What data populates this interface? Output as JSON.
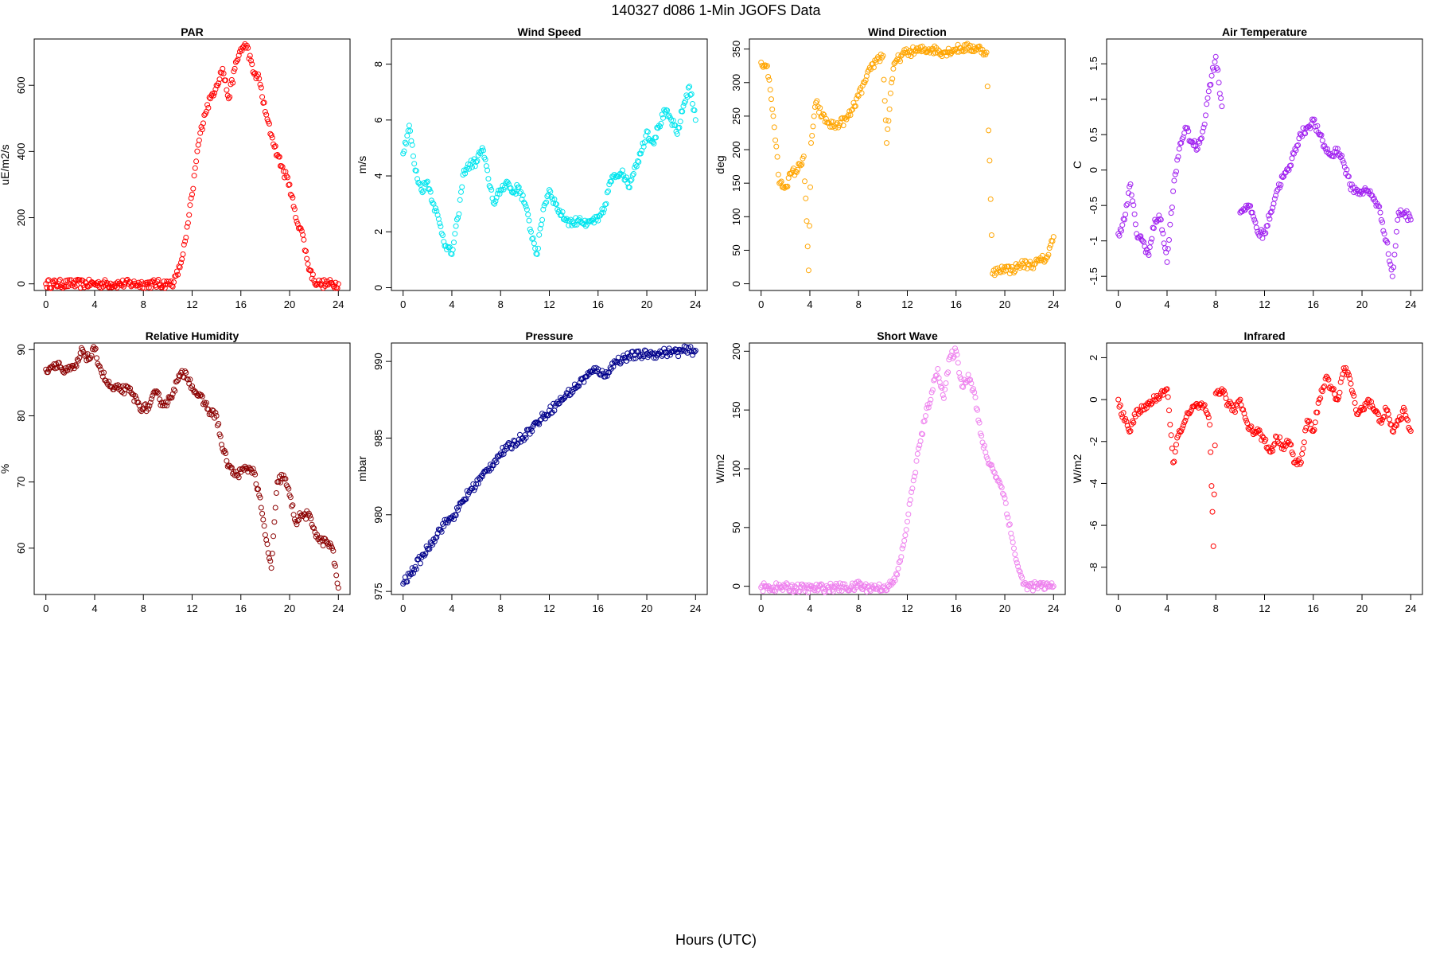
{
  "figure": {
    "title": "140327   d086   1-Min  JGOFS Data",
    "xlabel": "Hours (UTC)",
    "x_ticks": [
      0,
      4,
      8,
      12,
      16,
      20,
      24
    ],
    "xlim": [
      0,
      24
    ]
  },
  "chart_data": [
    {
      "type": "scatter",
      "title": "PAR",
      "ylabel": "uE/m2/s",
      "color": "#ff0000",
      "ylim": [
        -20,
        740
      ],
      "y_ticks": [
        0,
        200,
        400,
        600
      ],
      "x": [
        0,
        2,
        4,
        6,
        8,
        10,
        10.5,
        11,
        11.5,
        12,
        12.5,
        13,
        13.5,
        14,
        14.5,
        15,
        15.5,
        16,
        16.5,
        17,
        17.5,
        18,
        18.5,
        19,
        19.5,
        20,
        20.5,
        21,
        21.5,
        22,
        22.5,
        23,
        24
      ],
      "y": [
        0,
        0,
        0,
        0,
        0,
        0,
        5,
        50,
        140,
        270,
        420,
        510,
        560,
        600,
        650,
        560,
        650,
        710,
        720,
        640,
        620,
        520,
        450,
        390,
        340,
        300,
        200,
        160,
        60,
        10,
        0,
        0,
        0
      ]
    },
    {
      "type": "scatter",
      "title": "Wind Speed",
      "ylabel": "m/s",
      "color": "#00e5ee",
      "ylim": [
        -0.1,
        8.9
      ],
      "y_ticks": [
        0,
        2,
        4,
        6,
        8
      ],
      "x": [
        0,
        0.5,
        1,
        1.5,
        2,
        2.5,
        3,
        3.5,
        4,
        4.5,
        5,
        5.5,
        6,
        6.5,
        7,
        7.5,
        8,
        8.5,
        9,
        9.5,
        10,
        10.5,
        11,
        11.5,
        12,
        12.5,
        13,
        13.5,
        14,
        14.5,
        15,
        15.5,
        16,
        16.5,
        17,
        17.5,
        18,
        18.5,
        19,
        19.5,
        20,
        20.5,
        21,
        21.5,
        22,
        22.5,
        23,
        23.5,
        24
      ],
      "y": [
        4.8,
        5.8,
        4.2,
        3.5,
        3.8,
        3.0,
        2.3,
        1.5,
        1.2,
        2.5,
        4.2,
        4.4,
        4.5,
        5.0,
        3.9,
        3.0,
        3.5,
        3.8,
        3.4,
        3.6,
        3.0,
        2.0,
        1.2,
        2.8,
        3.5,
        3.0,
        2.6,
        2.4,
        2.3,
        2.5,
        2.2,
        2.4,
        2.4,
        2.8,
        3.8,
        4.0,
        4.2,
        3.6,
        4.3,
        4.8,
        5.6,
        5.2,
        5.8,
        6.3,
        6.0,
        5.5,
        6.5,
        7.2,
        6.0
      ]
    },
    {
      "type": "scatter",
      "title": "Wind Direction",
      "ylabel": "deg",
      "color": "#ffa500",
      "ylim": [
        -10,
        365
      ],
      "y_ticks": [
        0,
        50,
        100,
        150,
        200,
        250,
        300,
        350
      ],
      "x": [
        0,
        0.5,
        1,
        1.5,
        2,
        2.5,
        3,
        3.5,
        3.9,
        4.1,
        4.5,
        5,
        5.5,
        6,
        6.5,
        7,
        7.5,
        8,
        8.5,
        9,
        9.5,
        10,
        10.3,
        10.7,
        11,
        11.5,
        12,
        13,
        14,
        15,
        16,
        17,
        18,
        18.5,
        19,
        19.5,
        20,
        20.5,
        21,
        21.5,
        22,
        22.5,
        23,
        23.5,
        24
      ],
      "y": [
        330,
        325,
        250,
        150,
        145,
        165,
        170,
        190,
        20,
        210,
        270,
        250,
        240,
        235,
        240,
        245,
        260,
        280,
        300,
        320,
        335,
        340,
        210,
        300,
        330,
        340,
        345,
        348,
        350,
        345,
        350,
        352,
        350,
        345,
        15,
        20,
        25,
        20,
        25,
        30,
        28,
        30,
        35,
        40,
        70
      ]
    },
    {
      "type": "scatter",
      "title": "Air Temperature",
      "ylabel": "C",
      "color": "#a020f0",
      "ylim": [
        -1.7,
        1.85
      ],
      "y_ticks": [
        -1.5,
        -1.0,
        -0.5,
        0.0,
        0.5,
        1.0,
        1.5
      ],
      "x": [
        0,
        0.5,
        1,
        1.5,
        2,
        2.5,
        3,
        3.5,
        4,
        4.5,
        5,
        5.5,
        6,
        6.5,
        7,
        7.5,
        8,
        8.5,
        9,
        9.5,
        10,
        10.5,
        11,
        11.5,
        12,
        12.5,
        13,
        13.5,
        14,
        14.5,
        15,
        15.5,
        16,
        16.5,
        17,
        17.5,
        18,
        18.5,
        19,
        19.5,
        20,
        20.5,
        21,
        21.5,
        22,
        22.5,
        23,
        23.5,
        24
      ],
      "y": [
        -0.9,
        -0.7,
        -0.2,
        -0.9,
        -1.0,
        -1.2,
        -0.7,
        -0.7,
        -1.3,
        -0.3,
        0.3,
        0.6,
        0.4,
        0.3,
        0.6,
        1.2,
        1.6,
        0.9,
        null,
        null,
        -0.6,
        -0.5,
        -0.6,
        -0.9,
        -0.9,
        -0.6,
        -0.3,
        -0.1,
        0.0,
        0.3,
        0.5,
        0.6,
        0.7,
        0.5,
        0.3,
        0.2,
        0.3,
        0.1,
        -0.2,
        -0.3,
        -0.3,
        -0.3,
        -0.4,
        -0.6,
        -1.0,
        -1.5,
        -0.6,
        -0.6,
        -0.7
      ]
    },
    {
      "type": "scatter",
      "title": "Relative Humidity",
      "ylabel": "%",
      "color": "#8b0000",
      "ylim": [
        53,
        91
      ],
      "y_ticks": [
        60,
        70,
        80,
        90
      ],
      "x": [
        0,
        0.5,
        1,
        1.5,
        2,
        2.5,
        3,
        3.5,
        4,
        4.5,
        5,
        5.5,
        6,
        6.5,
        7,
        7.5,
        8,
        8.5,
        9,
        9.5,
        10,
        10.5,
        11,
        11.5,
        12,
        12.5,
        13,
        13.5,
        14,
        14.5,
        15,
        15.5,
        16,
        16.5,
        17,
        17.5,
        18,
        18.5,
        19,
        19.5,
        20,
        20.5,
        21,
        21.5,
        22,
        22.5,
        23,
        23.5,
        24
      ],
      "y": [
        87,
        87.5,
        88,
        86.5,
        87,
        87.5,
        90,
        88.5,
        90,
        87,
        85,
        84,
        84,
        84,
        83.5,
        82,
        81,
        81.5,
        83.5,
        82,
        82,
        84,
        86,
        86.5,
        84.5,
        83,
        82,
        80.5,
        80,
        75,
        72.5,
        71,
        71.5,
        72,
        72,
        68,
        62,
        57,
        70,
        71,
        68,
        64,
        65,
        65,
        63,
        61,
        61,
        60,
        54
      ]
    },
    {
      "type": "scatter",
      "title": "Pressure",
      "ylabel": "mbar",
      "color": "#00008b",
      "ylim": [
        974.8,
        991.2
      ],
      "y_ticks": [
        975,
        980,
        985,
        990
      ],
      "x": [
        0,
        0.5,
        1,
        1.5,
        2,
        2.5,
        3,
        3.5,
        4,
        4.5,
        5,
        5.5,
        6,
        6.5,
        7,
        7.5,
        8,
        8.5,
        9,
        9.5,
        10,
        10.5,
        11,
        11.5,
        12,
        12.5,
        13,
        13.5,
        14,
        14.5,
        15,
        15.5,
        16,
        16.5,
        17,
        17.5,
        18,
        18.5,
        19,
        19.5,
        20,
        20.5,
        21,
        21.5,
        22,
        22.5,
        23,
        23.5,
        24
      ],
      "y": [
        975.5,
        976,
        976.6,
        977.2,
        977.8,
        978.4,
        979,
        979.5,
        979.8,
        980.3,
        981,
        981.6,
        982,
        982.5,
        983,
        983.5,
        984,
        984.3,
        984.6,
        984.9,
        985.2,
        985.6,
        986,
        986.4,
        986.8,
        987.1,
        987.5,
        987.9,
        988.2,
        988.6,
        989,
        989.3,
        989.5,
        989.0,
        989.6,
        990,
        990.2,
        990.3,
        990.4,
        990.4,
        990.5,
        990.5,
        990.5,
        990.6,
        990.6,
        990.6,
        990.7,
        990.7,
        990.7
      ]
    },
    {
      "type": "scatter",
      "title": "Short Wave",
      "ylabel": "W/m2",
      "color": "#ee82ee",
      "ylim": [
        -7,
        207
      ],
      "y_ticks": [
        0,
        50,
        100,
        150,
        200
      ],
      "x": [
        0,
        2,
        4,
        6,
        7.8,
        8,
        8.2,
        10,
        10.5,
        11,
        11.5,
        12,
        12.5,
        13,
        13.5,
        14,
        14.5,
        15,
        15.5,
        16,
        16.5,
        17,
        17.5,
        18,
        18.5,
        19,
        19.5,
        20,
        20.5,
        21,
        21.5,
        22,
        23,
        24
      ],
      "y": [
        -1,
        -1,
        -2,
        -1,
        -1,
        4,
        -1,
        -1,
        0,
        5,
        25,
        55,
        90,
        120,
        145,
        165,
        185,
        160,
        195,
        200,
        170,
        180,
        165,
        130,
        110,
        100,
        90,
        75,
        45,
        20,
        2,
        0,
        0,
        0
      ]
    },
    {
      "type": "scatter",
      "title": "Infrared",
      "ylabel": "W/m2",
      "color": "#ff0000",
      "ylim": [
        -9.3,
        2.7
      ],
      "y_ticks": [
        -8,
        -6,
        -4,
        -2,
        0,
        2
      ],
      "x": [
        0,
        0.5,
        1,
        1.5,
        2,
        2.5,
        3,
        3.5,
        4,
        4.5,
        5,
        5.5,
        6,
        6.5,
        7,
        7.5,
        7.8,
        8,
        8.5,
        9,
        9.5,
        10,
        10.5,
        11,
        11.5,
        12,
        12.5,
        13,
        13.5,
        14,
        14.5,
        15,
        15.5,
        16,
        16.5,
        17,
        17.5,
        18,
        18.5,
        19,
        19.5,
        20,
        20.5,
        21,
        21.5,
        22,
        22.5,
        23,
        23.5,
        24
      ],
      "y": [
        0,
        -1,
        -1.5,
        -0.5,
        -0.5,
        -0.2,
        0,
        0.3,
        0.5,
        -3,
        -1.5,
        -1,
        -0.5,
        -0.3,
        -0.3,
        -1.2,
        -7,
        0.3,
        0.5,
        -0.2,
        -0.5,
        0,
        -1,
        -1.5,
        -1.5,
        -2,
        -2.5,
        -1.8,
        -2.2,
        -2,
        -3,
        -3,
        -1,
        -1.5,
        0,
        1,
        0.5,
        0,
        1.5,
        1,
        -0.5,
        -0.5,
        0,
        -0.5,
        -1,
        -0.5,
        -1.5,
        -1,
        -0.5,
        -1.5
      ]
    }
  ]
}
